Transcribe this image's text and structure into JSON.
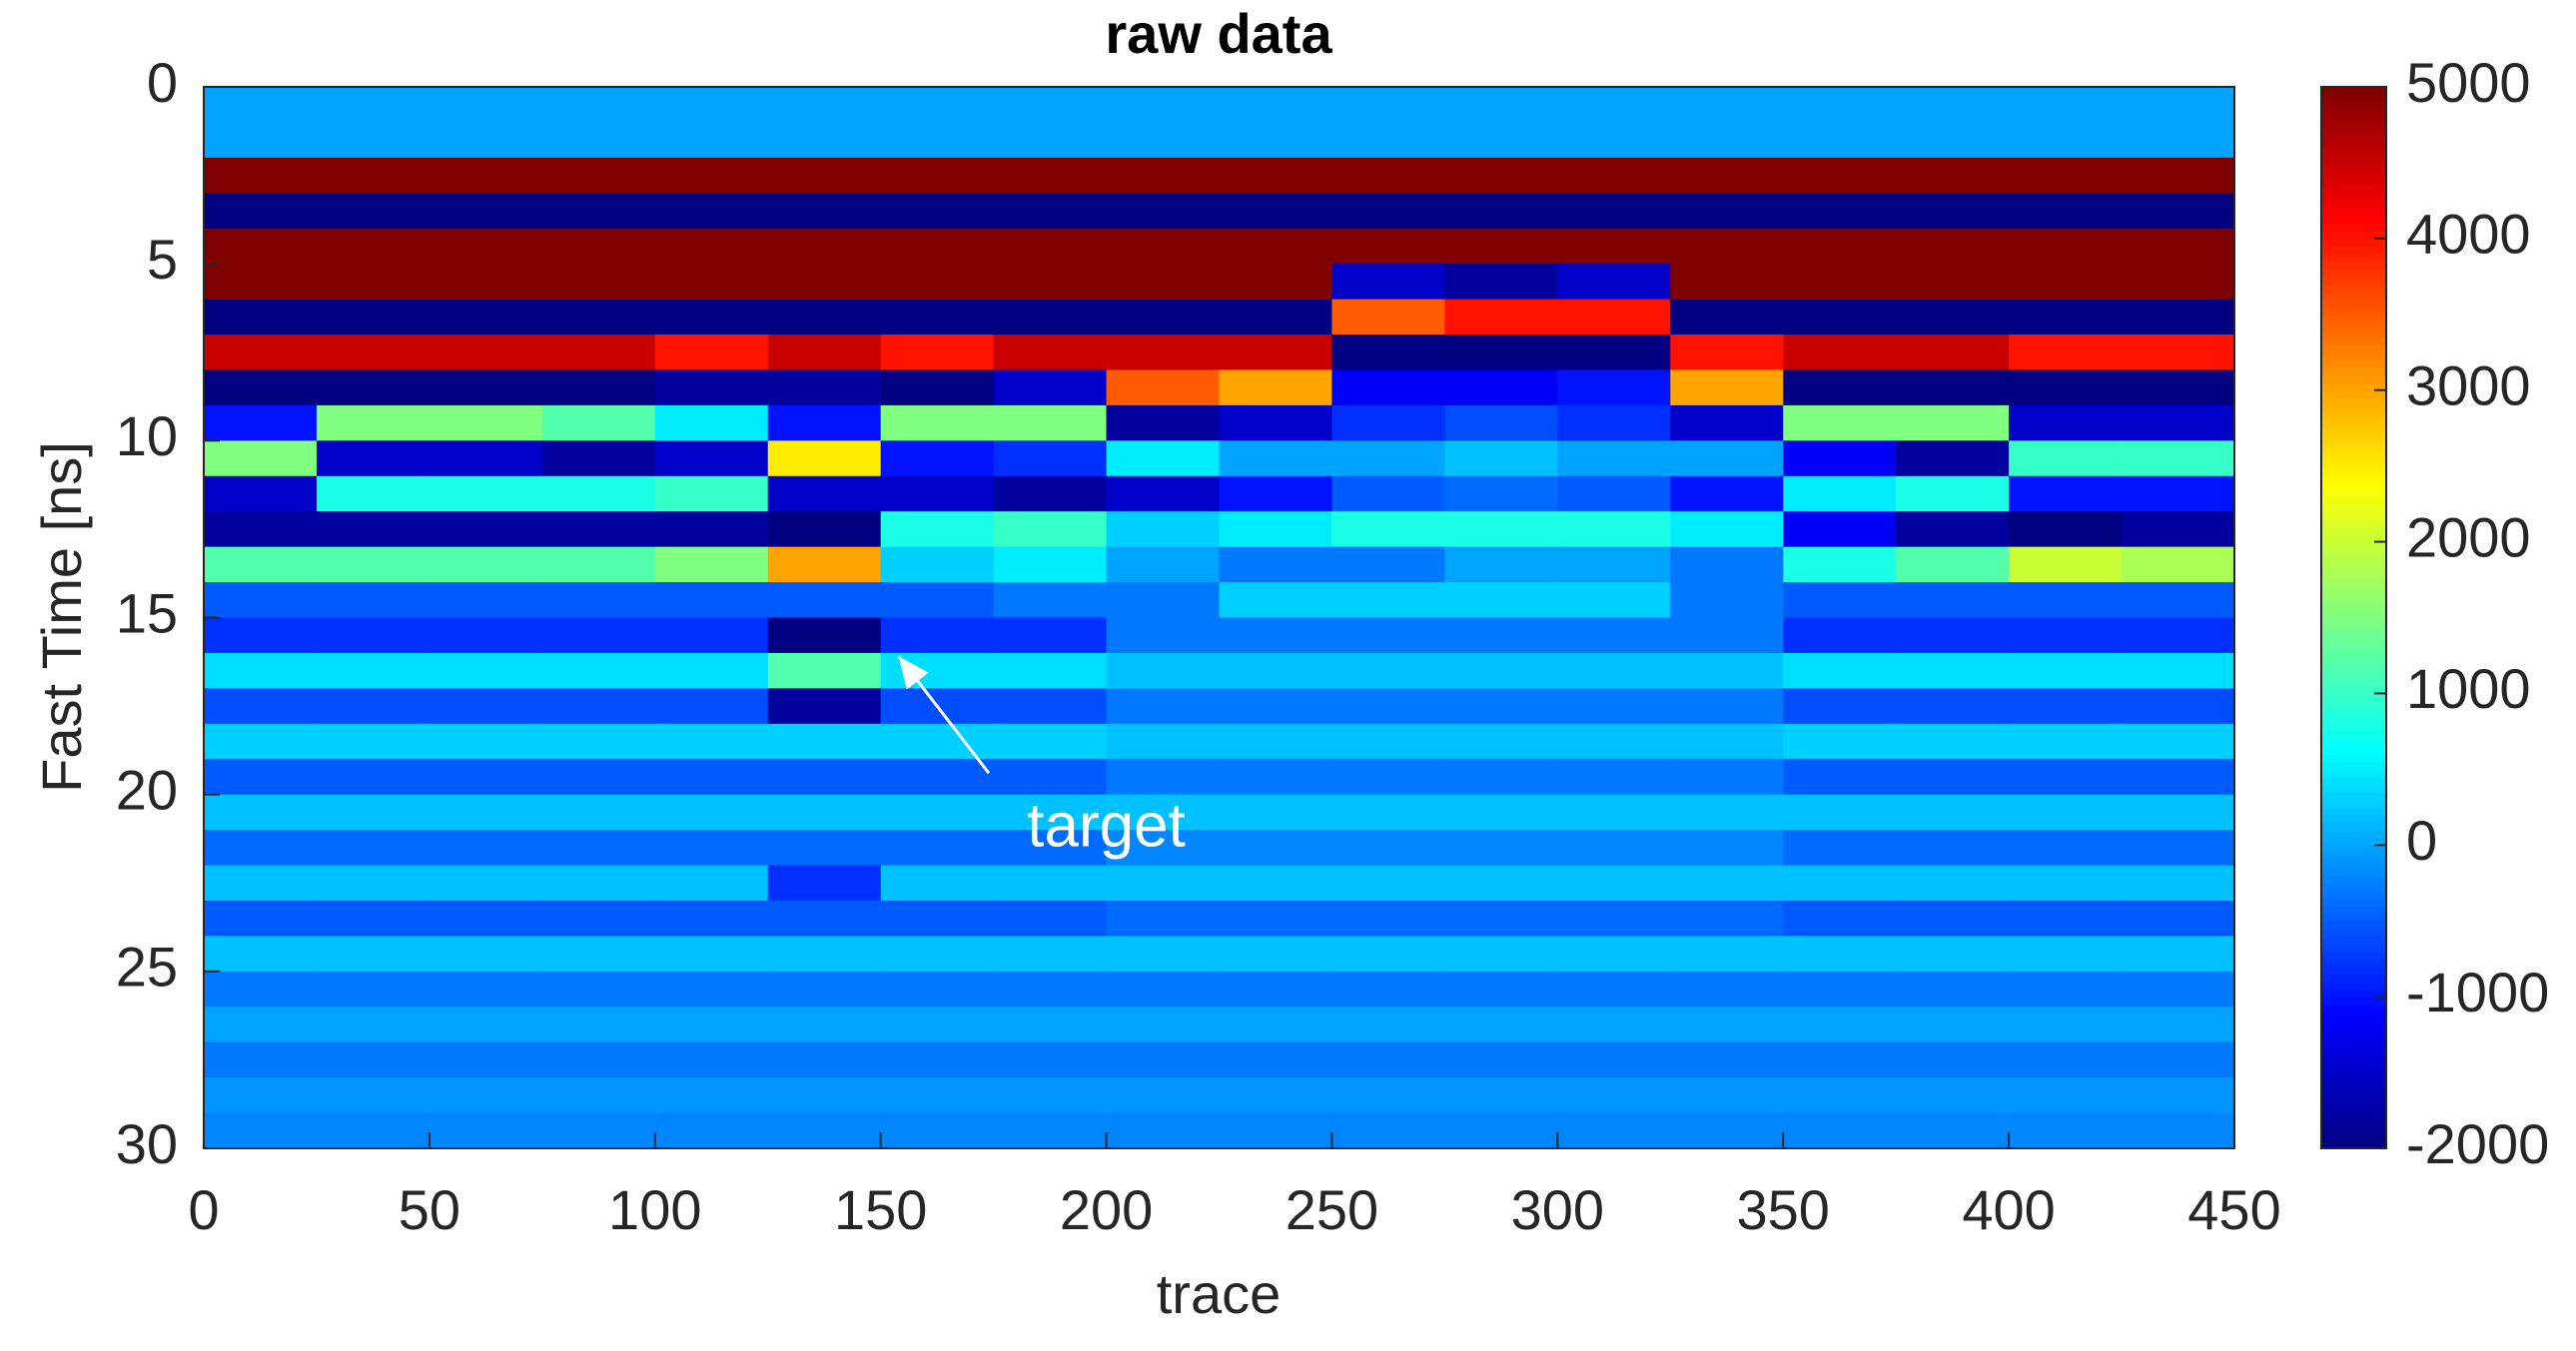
{
  "chart_data": {
    "type": "heatmap",
    "title": "raw data",
    "x_label": "trace",
    "y_label": "Fast Time [ns]",
    "x": [
      12.5,
      37.5,
      62.5,
      87.5,
      112.5,
      137.5,
      162.5,
      187.5,
      212.5,
      237.5,
      262.5,
      287.5,
      312.5,
      337.5,
      362.5,
      387.5,
      412.5,
      437.5
    ],
    "y": [
      0.5,
      1.5,
      2.5,
      3.5,
      4.5,
      5.5,
      6.5,
      7.5,
      8.5,
      9.5,
      10.5,
      11.5,
      12.5,
      13.5,
      14.5,
      15.5,
      16.5,
      17.5,
      18.5,
      19.5,
      20.5,
      21.5,
      22.5,
      23.5,
      24.5,
      25.5,
      26.5,
      27.5,
      28.5,
      29.5
    ],
    "values": [
      [
        0,
        0,
        0,
        0,
        0,
        0,
        0,
        0,
        0,
        0,
        0,
        0,
        0,
        0,
        0,
        0,
        0,
        0
      ],
      [
        0,
        0,
        0,
        0,
        0,
        0,
        0,
        0,
        0,
        0,
        0,
        0,
        0,
        0,
        0,
        0,
        0,
        0
      ],
      [
        5000,
        5000,
        5000,
        5000,
        5000,
        5000,
        5000,
        5000,
        5000,
        5000,
        5000,
        5000,
        5000,
        5000,
        5000,
        5000,
        5000,
        5000
      ],
      [
        -2000,
        -2000,
        -2000,
        -2000,
        -2000,
        -2000,
        -2000,
        -2000,
        -2000,
        -2000,
        -2000,
        -2000,
        -2000,
        -2000,
        -2000,
        -2000,
        -2000,
        -2000
      ],
      [
        5000,
        5000,
        5000,
        5000,
        5000,
        5000,
        5000,
        5000,
        5000,
        5000,
        5000,
        5000,
        5000,
        5000,
        5000,
        5000,
        5000,
        5000
      ],
      [
        5000,
        5000,
        5000,
        5000,
        5000,
        5000,
        5000,
        5000,
        5000,
        5000,
        -1500,
        -1800,
        -1500,
        5000,
        5000,
        5000,
        5000,
        5000
      ],
      [
        -2000,
        -2000,
        -2000,
        -2000,
        -2000,
        -2000,
        -2000,
        -2000,
        -2000,
        -2000,
        3500,
        4000,
        4000,
        -2000,
        -2000,
        -2000,
        -2000,
        -2000
      ],
      [
        4500,
        4500,
        4500,
        4500,
        4000,
        4500,
        4000,
        4500,
        4500,
        4500,
        -2000,
        -2000,
        -2000,
        4000,
        4500,
        4500,
        4000,
        4000
      ],
      [
        -2000,
        -2000,
        -2000,
        -2000,
        -1800,
        -1800,
        -2000,
        -1500,
        3500,
        3000,
        -1200,
        -1200,
        -1000,
        3000,
        -2000,
        -2000,
        -2000,
        -2000
      ],
      [
        -1000,
        1500,
        1500,
        1200,
        500,
        -1000,
        1500,
        1500,
        -1800,
        -1500,
        -800,
        -600,
        -800,
        -1500,
        1500,
        1500,
        -1500,
        -1500
      ],
      [
        1500,
        -1500,
        -1500,
        -1800,
        -1500,
        2500,
        -1000,
        -800,
        500,
        0,
        0,
        200,
        0,
        0,
        -1200,
        -1800,
        1000,
        1000
      ],
      [
        -1500,
        800,
        800,
        800,
        1000,
        -1500,
        -1500,
        -1800,
        -1500,
        -1000,
        -500,
        -400,
        -500,
        -1000,
        500,
        800,
        -1000,
        -1000
      ],
      [
        -1800,
        -1800,
        -1800,
        -1800,
        -1800,
        -2000,
        800,
        1000,
        300,
        500,
        800,
        800,
        800,
        500,
        -1200,
        -1800,
        -2000,
        -1800
      ],
      [
        1200,
        1200,
        1200,
        1200,
        1500,
        3000,
        300,
        500,
        0,
        -300,
        -300,
        0,
        0,
        -300,
        800,
        1200,
        2000,
        1800
      ],
      [
        -500,
        -500,
        -500,
        -500,
        -500,
        -500,
        -500,
        -300,
        -300,
        300,
        300,
        300,
        300,
        -300,
        -500,
        -500,
        -500,
        -500
      ],
      [
        -800,
        -800,
        -800,
        -800,
        -800,
        -2000,
        -800,
        -800,
        -300,
        -300,
        -300,
        -300,
        -300,
        -300,
        -800,
        -800,
        -800,
        -800
      ],
      [
        400,
        400,
        400,
        400,
        400,
        1200,
        400,
        400,
        200,
        200,
        200,
        200,
        200,
        200,
        400,
        400,
        400,
        400
      ],
      [
        -600,
        -600,
        -600,
        -600,
        -600,
        -1800,
        -600,
        -600,
        -300,
        -300,
        -300,
        -300,
        -300,
        -300,
        -600,
        -600,
        -600,
        -600
      ],
      [
        300,
        300,
        300,
        300,
        300,
        300,
        300,
        300,
        200,
        200,
        200,
        200,
        200,
        200,
        300,
        300,
        300,
        300
      ],
      [
        -500,
        -500,
        -500,
        -500,
        -500,
        -500,
        -500,
        -500,
        -300,
        -300,
        -300,
        -300,
        -300,
        -300,
        -500,
        -500,
        -500,
        -500
      ],
      [
        200,
        200,
        200,
        200,
        200,
        200,
        200,
        200,
        200,
        200,
        200,
        200,
        200,
        200,
        200,
        200,
        200,
        200
      ],
      [
        -400,
        -400,
        -400,
        -400,
        -400,
        -400,
        -400,
        -400,
        -200,
        -200,
        -200,
        -200,
        -200,
        -200,
        -400,
        -400,
        -400,
        -400
      ],
      [
        200,
        200,
        200,
        200,
        200,
        -800,
        200,
        200,
        200,
        200,
        200,
        200,
        200,
        200,
        200,
        200,
        200,
        200
      ],
      [
        -500,
        -500,
        -500,
        -500,
        -500,
        -500,
        -500,
        -500,
        -400,
        -400,
        -400,
        -400,
        -400,
        -400,
        -500,
        -500,
        -500,
        -500
      ],
      [
        200,
        200,
        200,
        200,
        200,
        200,
        200,
        200,
        200,
        200,
        200,
        200,
        200,
        200,
        200,
        200,
        200,
        200
      ],
      [
        -300,
        -300,
        -300,
        -300,
        -300,
        -300,
        -300,
        -300,
        -300,
        -300,
        -300,
        -300,
        -300,
        -300,
        -300,
        -300,
        -300,
        -300
      ],
      [
        0,
        0,
        0,
        0,
        0,
        0,
        0,
        0,
        0,
        0,
        0,
        0,
        0,
        0,
        0,
        0,
        0,
        0
      ],
      [
        -300,
        -300,
        -300,
        -300,
        -300,
        -300,
        -300,
        -300,
        -300,
        -300,
        -300,
        -300,
        -300,
        -300,
        -300,
        -300,
        -300,
        -300
      ],
      [
        -100,
        -100,
        -100,
        -100,
        -100,
        -100,
        -100,
        -100,
        -100,
        -100,
        -100,
        -100,
        -100,
        -100,
        -100,
        -100,
        -100,
        -100
      ],
      [
        -200,
        -200,
        -200,
        -200,
        -200,
        -200,
        -200,
        -200,
        -200,
        -200,
        -200,
        -200,
        -200,
        -200,
        -200,
        -200,
        -200,
        -200
      ]
    ],
    "xlim": [
      0,
      450
    ],
    "xticks": [
      0,
      50,
      100,
      150,
      200,
      250,
      300,
      350,
      400,
      450
    ],
    "ylim": [
      0,
      30
    ],
    "yticks": [
      0,
      5,
      10,
      15,
      20,
      25,
      30
    ],
    "y_inverted": true,
    "colormap": "jet",
    "clim": [
      -2000,
      5000
    ],
    "cticks": [
      -2000,
      -1000,
      0,
      1000,
      2000,
      3000,
      4000,
      5000
    ],
    "annotations": [
      {
        "text": "target"
      }
    ]
  }
}
